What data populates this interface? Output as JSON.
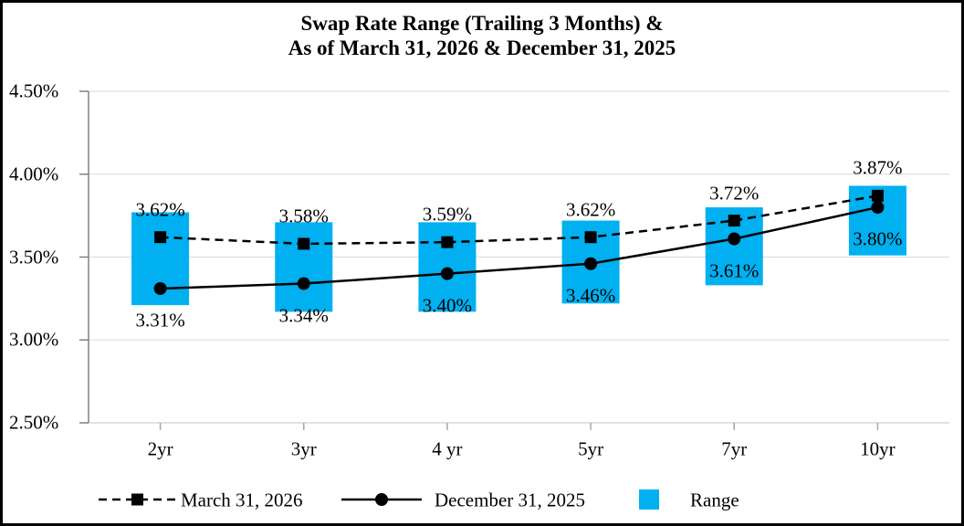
{
  "title": {
    "line1": "Swap Rate Range (Trailing 3 Months) &",
    "line2": "As of March 31, 2026 & December 31, 2025"
  },
  "colors": {
    "range_fill": "#00B0F0",
    "series_line": "#000000",
    "gridline": "#D9D9D9",
    "y_axis_line": "#808080",
    "x_axis_line": "#D9D9D9",
    "x_tick": "#A6A6A6",
    "text": "#000000",
    "border": "#000000",
    "background": "#FFFFFF"
  },
  "chart_data": {
    "type": "line",
    "title": "Swap Rate Range (Trailing 3 Months) & As of March 31, 2026 & December 31, 2025",
    "categories": [
      "2yr",
      "3yr",
      "4 yr",
      "5yr",
      "7yr",
      "10yr"
    ],
    "series": [
      {
        "name": "March 31, 2026",
        "kind": "line",
        "line_style": "dashed",
        "marker": "square",
        "values": [
          3.62,
          3.58,
          3.59,
          3.62,
          3.72,
          3.87
        ],
        "labels": [
          "3.62%",
          "3.58%",
          "3.59%",
          "3.62%",
          "3.72%",
          "3.87%"
        ]
      },
      {
        "name": "December 31, 2025",
        "kind": "line",
        "line_style": "solid",
        "marker": "circle",
        "values": [
          3.31,
          3.34,
          3.4,
          3.46,
          3.61,
          3.8
        ],
        "labels": [
          "3.31%",
          "3.34%",
          "3.40%",
          "3.46%",
          "3.61%",
          "3.80%"
        ]
      },
      {
        "name": "Range",
        "kind": "bar",
        "high": [
          3.77,
          3.71,
          3.71,
          3.72,
          3.8,
          3.93
        ],
        "low": [
          3.21,
          3.17,
          3.17,
          3.22,
          3.33,
          3.51
        ]
      }
    ],
    "y_axis": {
      "min": 2.5,
      "max": 4.5,
      "tick_labels": [
        "4.50%",
        "4.00%",
        "3.50%",
        "3.00%",
        "2.50%"
      ],
      "tick_values": [
        4.5,
        4.0,
        3.5,
        3.0,
        2.5
      ]
    },
    "x_axis": {
      "tick_labels": [
        "2yr",
        "3yr",
        "4 yr",
        "5yr",
        "7yr",
        "10yr"
      ]
    },
    "legend": {
      "position": "bottom",
      "entries": [
        "March 31, 2026",
        "December 31, 2025",
        "Range"
      ]
    },
    "grid": "horizontal"
  }
}
